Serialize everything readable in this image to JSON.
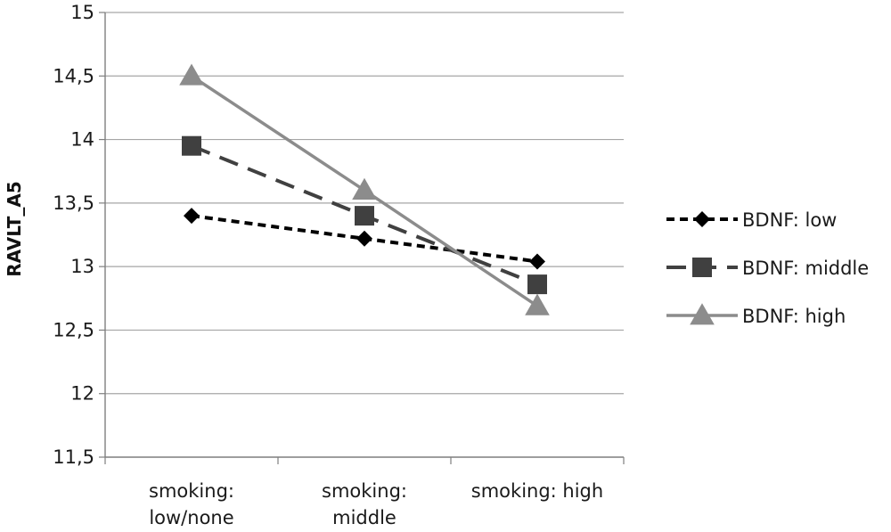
{
  "chart_data": {
    "type": "line",
    "xlabel": "",
    "ylabel": "RAVLT_A5",
    "categories": [
      [
        "smoking:",
        "low/none"
      ],
      [
        "smoking:",
        "middle"
      ],
      [
        "smoking: high"
      ]
    ],
    "ylim": [
      11.5,
      15
    ],
    "yticks": [
      "11,5",
      "12",
      "12,5",
      "13",
      "13,5",
      "14",
      "14,5",
      "15"
    ],
    "grid": true,
    "legend_position": "right",
    "series": [
      {
        "name": "BDNF: low",
        "values": [
          13.4,
          13.22,
          13.04
        ],
        "color": "#000000",
        "line": "dotted",
        "marker": "diamond"
      },
      {
        "name": "BDNF: middle",
        "values": [
          13.95,
          13.4,
          12.86
        ],
        "color": "#404040",
        "line": "dashed",
        "marker": "square"
      },
      {
        "name": "BDNF: high",
        "values": [
          14.5,
          13.6,
          12.69
        ],
        "color": "#8c8c8c",
        "line": "solid",
        "marker": "triangle"
      }
    ]
  }
}
